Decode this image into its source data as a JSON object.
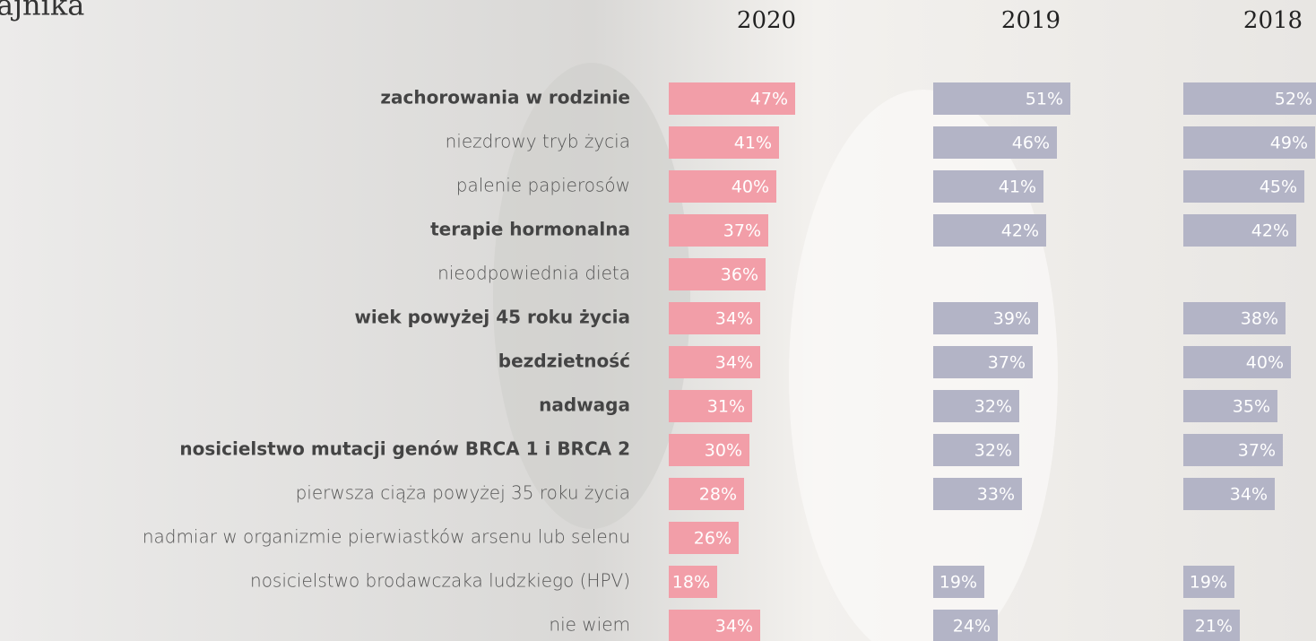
{
  "chart_data": {
    "type": "bar",
    "orientation": "horizontal",
    "title": "ajnika",
    "categories": [
      "zachorowania w rodzinie",
      "niezdrowy tryb życia",
      "palenie papierosów",
      "terapie hormonalna",
      "nieodpowiednia dieta",
      "wiek powyżej 45 roku życia",
      "bezdzietność",
      "nadwaga",
      "nosicielstwo mutacji genów BRCA 1 i BRCA 2",
      "pierwsza ciąża powyżej 35 roku życia",
      "nadmiar w organizmie pierwiastków arsenu lub selenu",
      "nosicielstwo brodawczaka ludzkiego (HPV)",
      "nie wiem"
    ],
    "emphasis": [
      true,
      false,
      false,
      true,
      false,
      true,
      true,
      true,
      true,
      false,
      false,
      false,
      false
    ],
    "series": [
      {
        "name": "2020",
        "color": "#f29ea8",
        "values": [
          47,
          41,
          40,
          37,
          36,
          34,
          34,
          31,
          30,
          28,
          26,
          18,
          34
        ],
        "value_labels": [
          "47%",
          "41%",
          "40%",
          "37%",
          "36%",
          "34%",
          "34%",
          "31%",
          "30%",
          "28%",
          "26%",
          "18%",
          "34%"
        ]
      },
      {
        "name": "2019",
        "color": "#b3b4c6",
        "values": [
          51,
          46,
          41,
          42,
          null,
          39,
          37,
          32,
          32,
          33,
          null,
          19,
          24
        ],
        "value_labels": [
          "51%",
          "46%",
          "41%",
          "42%",
          null,
          "39%",
          "37%",
          "32%",
          "32%",
          "33%",
          null,
          "19%",
          "24%"
        ]
      },
      {
        "name": "2018",
        "color": "#b3b4c6",
        "values": [
          52,
          49,
          45,
          42,
          null,
          38,
          40,
          35,
          37,
          34,
          null,
          19,
          21
        ],
        "value_labels": [
          "52%",
          "49%",
          "45%",
          "42%",
          null,
          "38%",
          "40%",
          "35%",
          "37%",
          "34%",
          null,
          "19%",
          "21%"
        ]
      }
    ]
  }
}
